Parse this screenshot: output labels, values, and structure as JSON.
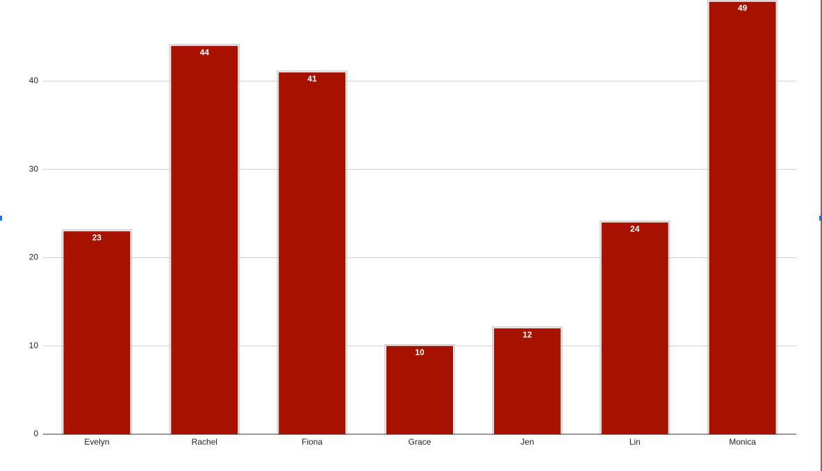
{
  "chart_data": {
    "type": "bar",
    "categories": [
      "Evelyn",
      "Rachel",
      "Fiona",
      "Grace",
      "Jen",
      "Lin",
      "Monica"
    ],
    "values": [
      23,
      44,
      41,
      10,
      12,
      24,
      49
    ],
    "color": "#a61100",
    "ylim": [
      0,
      49.2
    ],
    "yticks": [
      0,
      10,
      20,
      30,
      40
    ],
    "grid": true
  }
}
